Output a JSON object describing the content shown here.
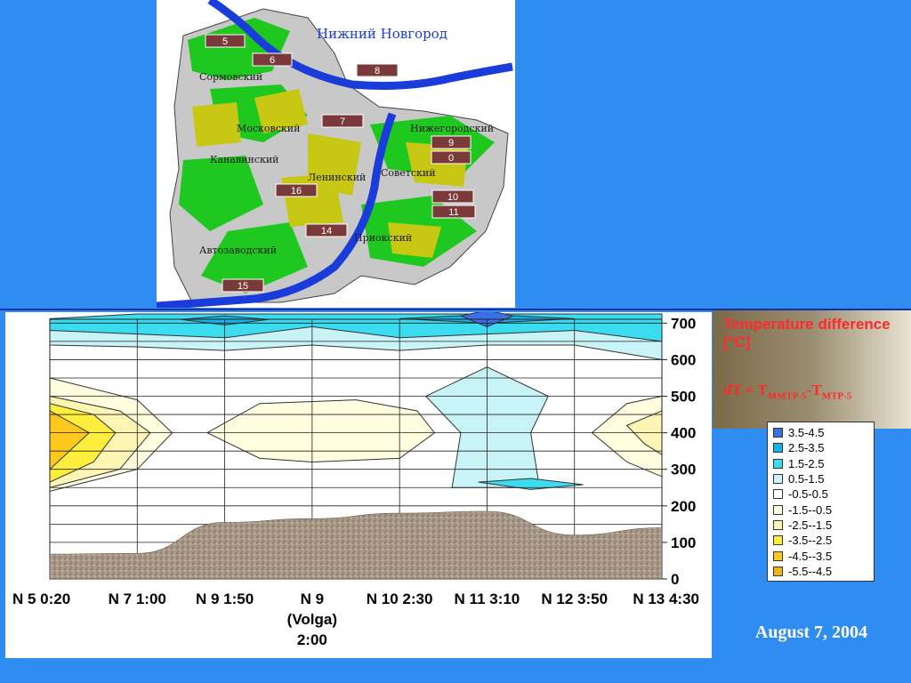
{
  "map": {
    "city_title": "Нижний Новгород",
    "districts": [
      "Сормовский",
      "Московский",
      "Канавинский",
      "Ленинский",
      "Нижегородский",
      "Советский",
      "Приокский",
      "Автозаводский"
    ],
    "markers": [
      "5",
      "6",
      "8",
      "7",
      "9",
      "0",
      "16",
      "10",
      "11",
      "14",
      "15"
    ],
    "colors": {
      "green": "#1ec81e",
      "yellow": "#c8c814",
      "gray": "#c0c0c0",
      "river": "#1a3cd8",
      "marker": "#7a3a3a"
    }
  },
  "legend": {
    "title": "Temperature difference [°C]",
    "formula_prefix": "dT = T",
    "formula_sub1": "MMTP-5",
    "formula_mid": "-T",
    "formula_sub2": "MTP-5",
    "items": [
      {
        "label": "3.5-4.5",
        "color": "#3a6fe8"
      },
      {
        "label": "2.5-3.5",
        "color": "#14b4e6"
      },
      {
        "label": "1.5-2.5",
        "color": "#3cdcf0"
      },
      {
        "label": "0.5-1.5",
        "color": "#c8f4f8"
      },
      {
        "label": "-0.5-0.5",
        "color": "#ffffff"
      },
      {
        "label": "-1.5--0.5",
        "color": "#ffffe0"
      },
      {
        "label": "-2.5--1.5",
        "color": "#fff5b4"
      },
      {
        "label": "-3.5--2.5",
        "color": "#ffee3c"
      },
      {
        "label": "-4.5--3.5",
        "color": "#ffc81e"
      },
      {
        "label": "-5.5--4.5",
        "color": "#f0b414"
      }
    ]
  },
  "chart_data": {
    "type": "heatmap",
    "x_categories": [
      "N 5 0:20",
      "N 7 1:00",
      "N 9 1:50",
      "N 9 (Volga) 2:00",
      "N 10 2:30",
      "N 11 3:10",
      "N 12 3:50",
      "N 13 4:30"
    ],
    "x_label_lines": [
      [
        "N 5 0:20"
      ],
      [
        "N 7 1:00"
      ],
      [
        "N 9 1:50"
      ],
      [
        "N 9",
        "(Volga)",
        "2:00"
      ],
      [
        "N 10 2:30"
      ],
      [
        "N 11 3:10"
      ],
      [
        "N 12 3:50"
      ],
      [
        "N 13 4:30"
      ]
    ],
    "y_ticks": [
      0,
      100,
      200,
      300,
      400,
      500,
      600,
      700
    ],
    "ylim": [
      0,
      730
    ],
    "y_levels": [
      0,
      50,
      100,
      150,
      200,
      250,
      300,
      350,
      400,
      450,
      500,
      550,
      600,
      650,
      700
    ],
    "terrain_height": [
      68,
      70,
      155,
      165,
      180,
      185,
      120,
      140
    ],
    "grid": true
  },
  "date": "August 7, 2004"
}
